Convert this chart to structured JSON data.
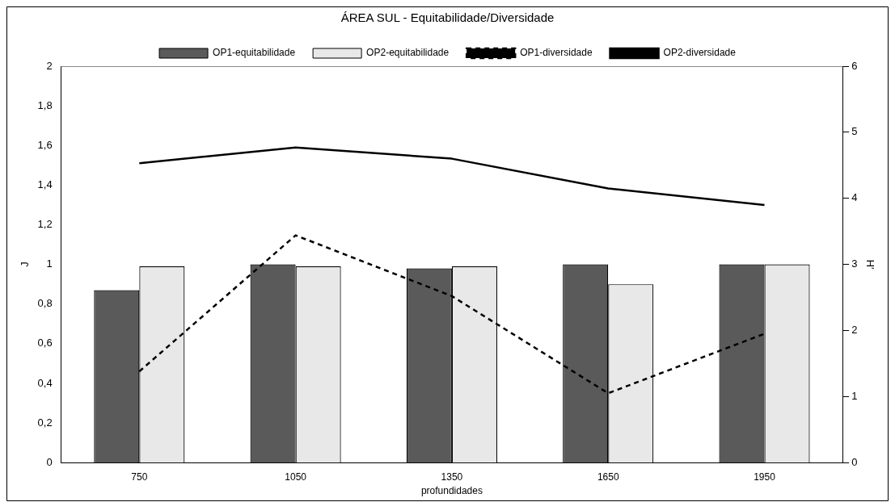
{
  "chart_data": {
    "type": "bar",
    "title": "ÁREA SUL - Equitabilidade/Diversidade",
    "xlabel": "profundidades",
    "ylabel": "J",
    "y2label": "H'",
    "categories": [
      "750",
      "1050",
      "1350",
      "1650",
      "1950"
    ],
    "series": [
      {
        "name": "OP1-equitabilidade",
        "color": "#5a5a5a",
        "values": [
          0.87,
          1.0,
          0.98,
          1.0,
          1.0
        ]
      },
      {
        "name": "OP2-equitabilidade",
        "color": "#e8e8e8",
        "values": [
          0.99,
          0.99,
          0.99,
          0.9,
          1.0
        ]
      },
      {
        "name": "OP1-diversidade",
        "type": "line",
        "axis": "y2",
        "color": "#000000",
        "line_style": "dashed",
        "values": [
          1.38,
          3.44,
          2.52,
          1.05,
          1.95
        ]
      },
      {
        "name": "OP2-diversidade",
        "type": "line",
        "axis": "y2",
        "color": "#000000",
        "line_style": "solid",
        "values": [
          4.53,
          4.77,
          4.6,
          4.15,
          3.9
        ]
      }
    ],
    "ylim": [
      0,
      2
    ],
    "yticks": [
      0,
      {
        "value": 0.2,
        "label": "0,2"
      },
      {
        "value": 0.4,
        "label": "0,4"
      },
      {
        "value": 0.6,
        "label": "0,6"
      },
      {
        "value": 0.8,
        "label": "0,8"
      },
      1,
      {
        "value": 1.2,
        "label": "1,2"
      },
      {
        "value": 1.4,
        "label": "1,4"
      },
      {
        "value": 1.6,
        "label": "1,6"
      },
      {
        "value": 1.8,
        "label": "1,8"
      },
      2
    ],
    "y2lim": [
      0,
      6
    ],
    "y2ticks": [
      0,
      1,
      2,
      3,
      4,
      5,
      6
    ],
    "grid": false,
    "legend": "top",
    "marker": "none"
  }
}
